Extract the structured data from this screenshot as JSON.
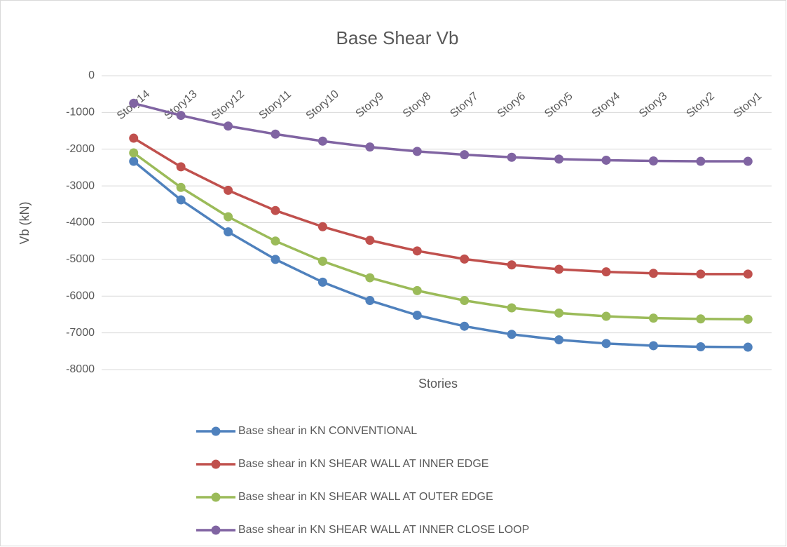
{
  "chart_data": {
    "type": "line",
    "title": "Base Shear Vb",
    "x_label": "Stories",
    "y_label": "Vb (kN)",
    "categories": [
      "Story14",
      "Story13",
      "Story12",
      "Story11",
      "Story10",
      "Story9",
      "Story8",
      "Story7",
      "Story6",
      "Story5",
      "Story4",
      "Story3",
      "Story2",
      "Story1"
    ],
    "series": [
      {
        "name": "Base shear in KN CONVENTIONAL",
        "color": "#4f81bd",
        "values": [
          -2330,
          -3380,
          -4250,
          -5000,
          -5620,
          -6120,
          -6520,
          -6820,
          -7040,
          -7190,
          -7290,
          -7350,
          -7380,
          -7390
        ]
      },
      {
        "name": "Base shear in KN SHEAR WALL AT INNER EDGE",
        "color": "#c0504d",
        "values": [
          -1700,
          -2480,
          -3120,
          -3670,
          -4110,
          -4480,
          -4770,
          -4990,
          -5150,
          -5270,
          -5340,
          -5380,
          -5400,
          -5400
        ]
      },
      {
        "name": "Base shear in KN SHEAR WALL AT OUTER EDGE",
        "color": "#9bbb59",
        "values": [
          -2100,
          -3040,
          -3840,
          -4500,
          -5050,
          -5500,
          -5850,
          -6120,
          -6320,
          -6460,
          -6550,
          -6600,
          -6620,
          -6630
        ]
      },
      {
        "name": "Base shear in KN SHEAR WALL AT INNER CLOSE LOOP",
        "color": "#8064a2",
        "values": [
          -750,
          -1080,
          -1370,
          -1590,
          -1780,
          -1940,
          -2060,
          -2150,
          -2220,
          -2270,
          -2300,
          -2320,
          -2330,
          -2330
        ]
      }
    ],
    "ylim": [
      -8000,
      0
    ],
    "yticks": [
      0,
      -1000,
      -2000,
      -3000,
      -4000,
      -5000,
      -6000,
      -7000,
      -8000
    ],
    "grid": true,
    "legend": "bottom"
  }
}
